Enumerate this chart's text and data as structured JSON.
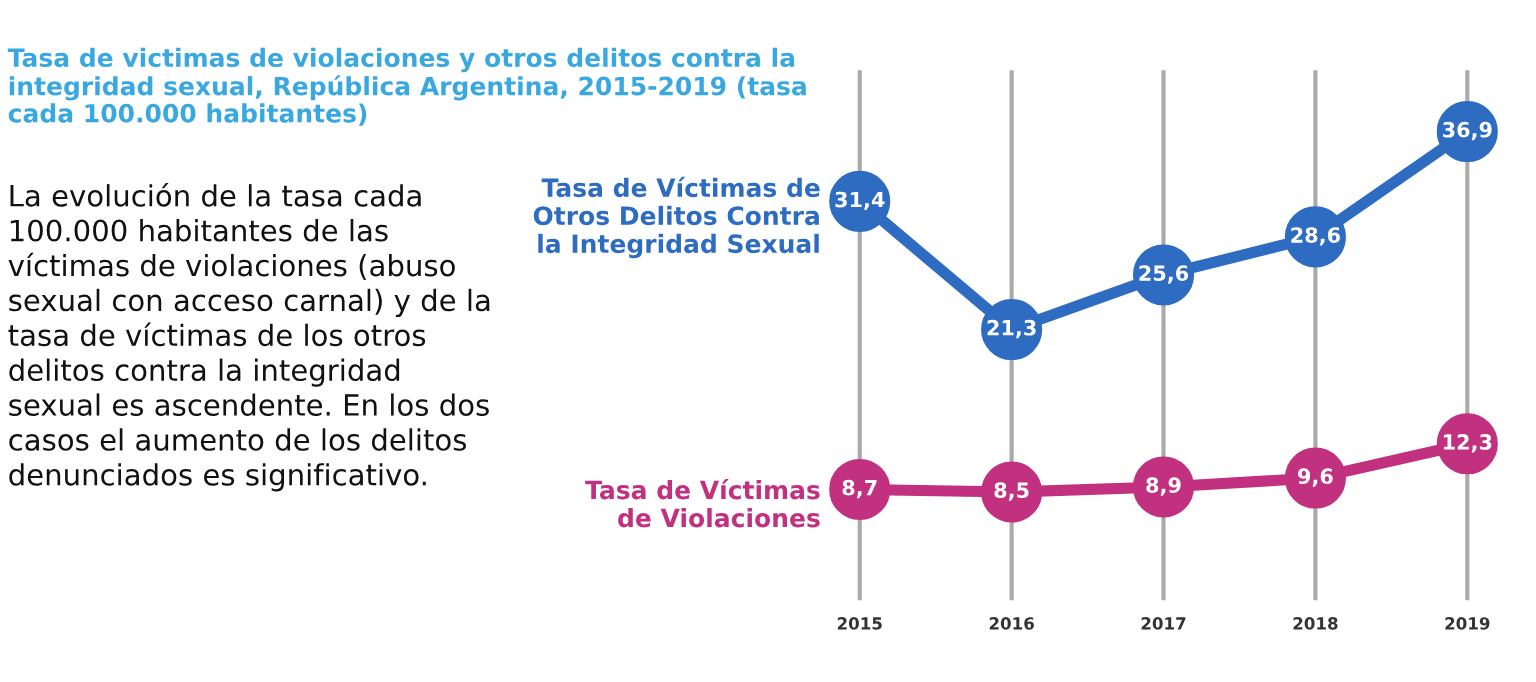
{
  "chart_data": {
    "type": "line",
    "title": "Tasa de victimas de violaciones y otros delitos contra la\nintegridad sexual, República Argentina, 2015-2019 (tasa\ncada 100.000 habitantes)",
    "annotations": [
      "La evolución de la tasa cada\n100.000 habitantes de las\nvíctimas de violaciones (abuso\nsexual con acceso carnal) y de la\ntasa de víctimas de los otros\ndelitos contra la integridad\nsexual es ascendente. En los dos\ncasos el aumento de los delitos\ndenunciados es significativo."
    ],
    "categories": [
      "2015",
      "2016",
      "2017",
      "2018",
      "2019"
    ],
    "series": [
      {
        "name": "Tasa de Víctimas de\nOtros Delitos Contra\nla Integridad Sexual",
        "color": "#2e6cc2",
        "values": [
          31.4,
          21.3,
          25.6,
          28.6,
          36.9
        ],
        "value_labels": [
          "31,4",
          "21,3",
          "25,6",
          "28,6",
          "36,9"
        ]
      },
      {
        "name": "Tasa de Víctimas\nde Violaciones",
        "color": "#c2317f",
        "values": [
          8.7,
          8.5,
          8.9,
          9.6,
          12.3
        ],
        "value_labels": [
          "8,7",
          "8,5",
          "8,9",
          "9,6",
          "12,3"
        ]
      }
    ],
    "grid": "x",
    "marker": "circle",
    "line_style": "solid",
    "legend": false
  }
}
